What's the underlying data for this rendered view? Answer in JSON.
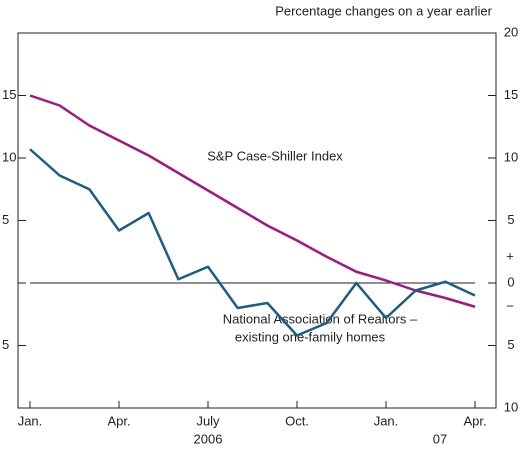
{
  "chart_data": {
    "type": "line",
    "subtitle": "Percentage changes on a year earlier",
    "categories": [
      "Jan.",
      null,
      null,
      "Apr.",
      null,
      null,
      "July",
      null,
      null,
      "Oct.",
      null,
      null,
      "Jan.",
      null,
      null,
      "Apr."
    ],
    "year_labels": [
      "2006",
      "07"
    ],
    "series": [
      {
        "name": "S&P Case-Shiller Index",
        "color": "#a3177f",
        "values": [
          15.0,
          14.2,
          12.6,
          11.4,
          10.2,
          8.8,
          7.4,
          6.0,
          4.6,
          3.4,
          2.1,
          0.9,
          0.2,
          -0.6,
          -1.2,
          -1.9
        ]
      },
      {
        "name": "National Association of Realtors – existing one-family homes",
        "name_lines": [
          "National Association of Realtors –",
          "existing one-family homes"
        ],
        "color": "#1b5d86",
        "values": [
          10.7,
          8.6,
          7.5,
          4.2,
          5.6,
          0.3,
          1.3,
          -2.0,
          -1.6,
          -4.2,
          -3.2,
          0.0,
          -2.8,
          -0.6,
          0.1,
          -1.0
        ]
      }
    ],
    "sign_labels": [
      "+",
      "−"
    ],
    "ylim": [
      -10,
      20
    ],
    "yticks": [
      {
        "value": -10,
        "label": "10"
      },
      {
        "value": -5,
        "label": "5"
      },
      0,
      5,
      10,
      15,
      20
    ],
    "zero_line": true
  }
}
